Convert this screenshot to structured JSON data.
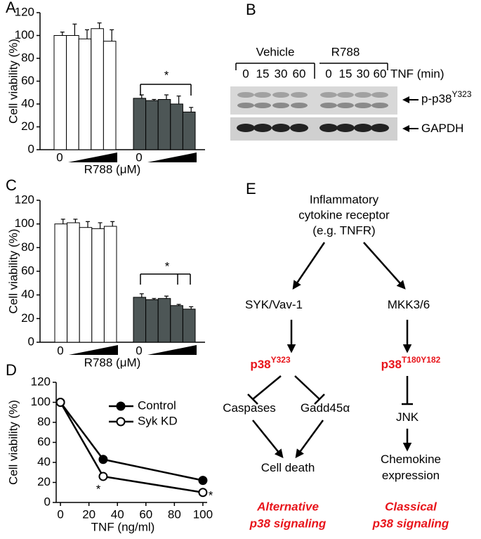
{
  "chart_data": [
    {
      "panel": "A",
      "type": "bar",
      "y_label": "Cell viability (%)",
      "x_label": "R788 (μM)",
      "categories": [
        "0",
        null,
        null,
        null,
        null,
        "0",
        null,
        null,
        null,
        null
      ],
      "series": [
        {
          "color": "#ffffff",
          "values": [
            100,
            100,
            97,
            106,
            95,
            null,
            null,
            null,
            null,
            null
          ],
          "errors": [
            3,
            10,
            8,
            5,
            10,
            null,
            null,
            null,
            null,
            null
          ]
        },
        {
          "color": "#4d5656",
          "values": [
            null,
            null,
            null,
            null,
            null,
            45,
            43,
            44,
            40,
            33
          ],
          "errors": [
            null,
            null,
            null,
            null,
            null,
            3,
            1,
            4,
            7,
            4
          ]
        }
      ],
      "ylim": [
        0,
        120
      ],
      "yticks": [
        0,
        20,
        40,
        60,
        80,
        100,
        120
      ],
      "annotations": [
        "*"
      ]
    },
    {
      "panel": "C",
      "type": "bar",
      "y_label": "Cell viability (%)",
      "x_label": "R788 (μM)",
      "categories": [
        "0",
        null,
        null,
        null,
        null,
        "0",
        null,
        null,
        null,
        null
      ],
      "series": [
        {
          "color": "#ffffff",
          "values": [
            100,
            101,
            97,
            96,
            98,
            null,
            null,
            null,
            null,
            null
          ],
          "errors": [
            4,
            3,
            5,
            5,
            4,
            null,
            null,
            null,
            null,
            null
          ]
        },
        {
          "color": "#4d5656",
          "values": [
            null,
            null,
            null,
            null,
            null,
            38,
            36,
            37,
            31,
            28
          ],
          "errors": [
            null,
            null,
            null,
            null,
            null,
            3,
            1,
            2,
            1,
            2
          ]
        }
      ],
      "ylim": [
        0,
        120
      ],
      "yticks": [
        0,
        20,
        40,
        60,
        80,
        100,
        120
      ],
      "annotations": [
        "*"
      ]
    },
    {
      "panel": "D",
      "type": "line",
      "y_label": "Cell viability (%)",
      "x_label": "TNF (ng/ml)",
      "x": [
        0,
        30,
        100
      ],
      "series": [
        {
          "name": "Control",
          "color": "#000000",
          "marker": "filled",
          "values": [
            100,
            43,
            22
          ]
        },
        {
          "name": "Syk KD",
          "color": "#000000",
          "marker": "open",
          "values": [
            100,
            26,
            10
          ]
        }
      ],
      "xlim": [
        -3,
        103
      ],
      "xticks": [
        0,
        20,
        40,
        60,
        80,
        100
      ],
      "ylim": [
        0,
        120
      ],
      "yticks": [
        0,
        20,
        40,
        60,
        80,
        100,
        120
      ],
      "annotations": [
        "*",
        "*"
      ]
    }
  ],
  "blot": {
    "panel": "B",
    "groups": [
      "Vehicle",
      "R788"
    ],
    "lanes": [
      "0",
      "15",
      "30",
      "60",
      "0",
      "15",
      "30",
      "60"
    ],
    "lane_axis": "TNF (min)",
    "bands": [
      {
        "label": "p-p38",
        "sup": "Y323"
      },
      {
        "label": "GAPDH"
      }
    ]
  },
  "diagram": {
    "panel": "E",
    "receptor": [
      "Inflammatory",
      "cytokine receptor",
      "(e.g. TNFR)"
    ],
    "nodes": [
      {
        "label": "SYK/Vav-1"
      },
      {
        "label": "MKK3/6"
      },
      {
        "label": "p38",
        "sup": "Y323"
      },
      {
        "label": "p38",
        "sup": "T180Y182"
      },
      {
        "label": "Caspases"
      },
      {
        "label": "Gadd45α"
      },
      {
        "label": "JNK"
      },
      {
        "label": "Cell death"
      },
      {
        "label": "Chemokine"
      },
      {
        "label": "expression"
      }
    ],
    "pathways": [
      [
        "Alternative",
        "p38 signaling"
      ],
      [
        "Classical",
        "p38 signaling"
      ]
    ]
  }
}
